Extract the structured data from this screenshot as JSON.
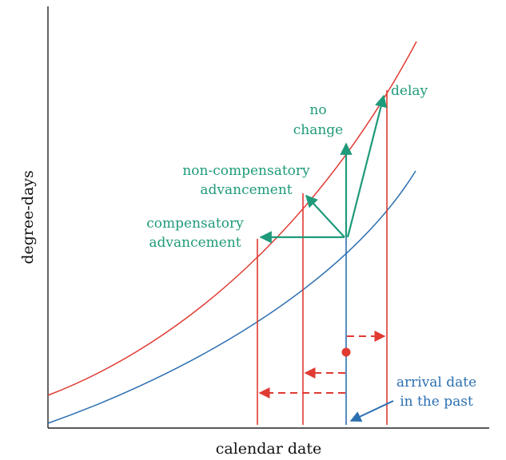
{
  "axes": {
    "xlabel": "calendar date",
    "ylabel": "degree-days"
  },
  "labels": {
    "delay": "delay",
    "no_change_1": "no",
    "no_change_2": "change",
    "noncomp_1": "non-compensatory",
    "noncomp_2": "advancement",
    "comp_1": "compensatory",
    "comp_2": "advancement",
    "arrival_1": "arrival date",
    "arrival_2": "in the past"
  },
  "colors": {
    "red": "#e03a32",
    "blue": "#2c6fb0",
    "green": "#1f9a7a",
    "axis": "#222222"
  }
}
